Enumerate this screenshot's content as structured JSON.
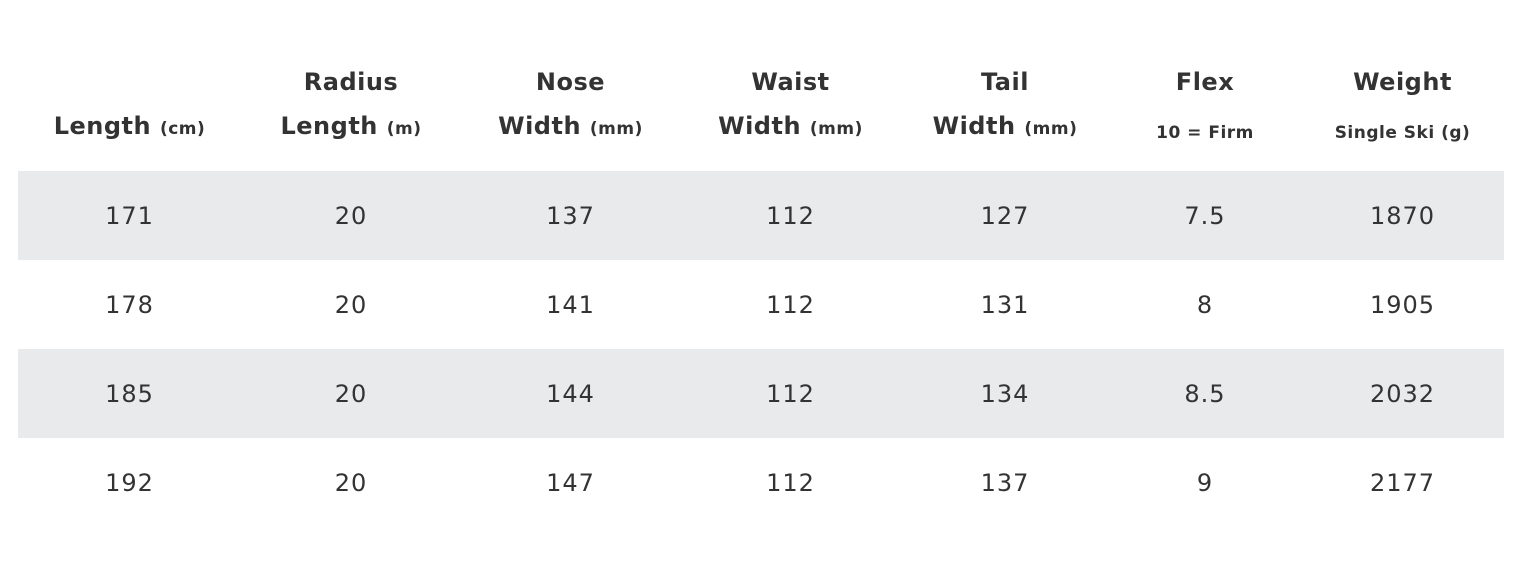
{
  "table": {
    "columns": [
      {
        "main": "Length",
        "unit": "(cm)"
      },
      {
        "top": "Radius",
        "main": "Length",
        "unit": "(m)"
      },
      {
        "top": "Nose",
        "main": "Width",
        "unit": "(mm)"
      },
      {
        "top": "Waist",
        "main": "Width",
        "unit": "(mm)"
      },
      {
        "top": "Tail",
        "main": "Width",
        "unit": "(mm)"
      },
      {
        "top": "Flex",
        "sub": "10 = Firm"
      },
      {
        "top": "Weight",
        "sub": "Single Ski (g)"
      }
    ],
    "rows": [
      [
        171,
        20,
        137,
        112,
        127,
        7.5,
        1870
      ],
      [
        178,
        20,
        141,
        112,
        131,
        8,
        1905
      ],
      [
        185,
        20,
        144,
        112,
        134,
        8.5,
        2032
      ],
      [
        192,
        20,
        147,
        112,
        137,
        9,
        2177
      ]
    ]
  }
}
